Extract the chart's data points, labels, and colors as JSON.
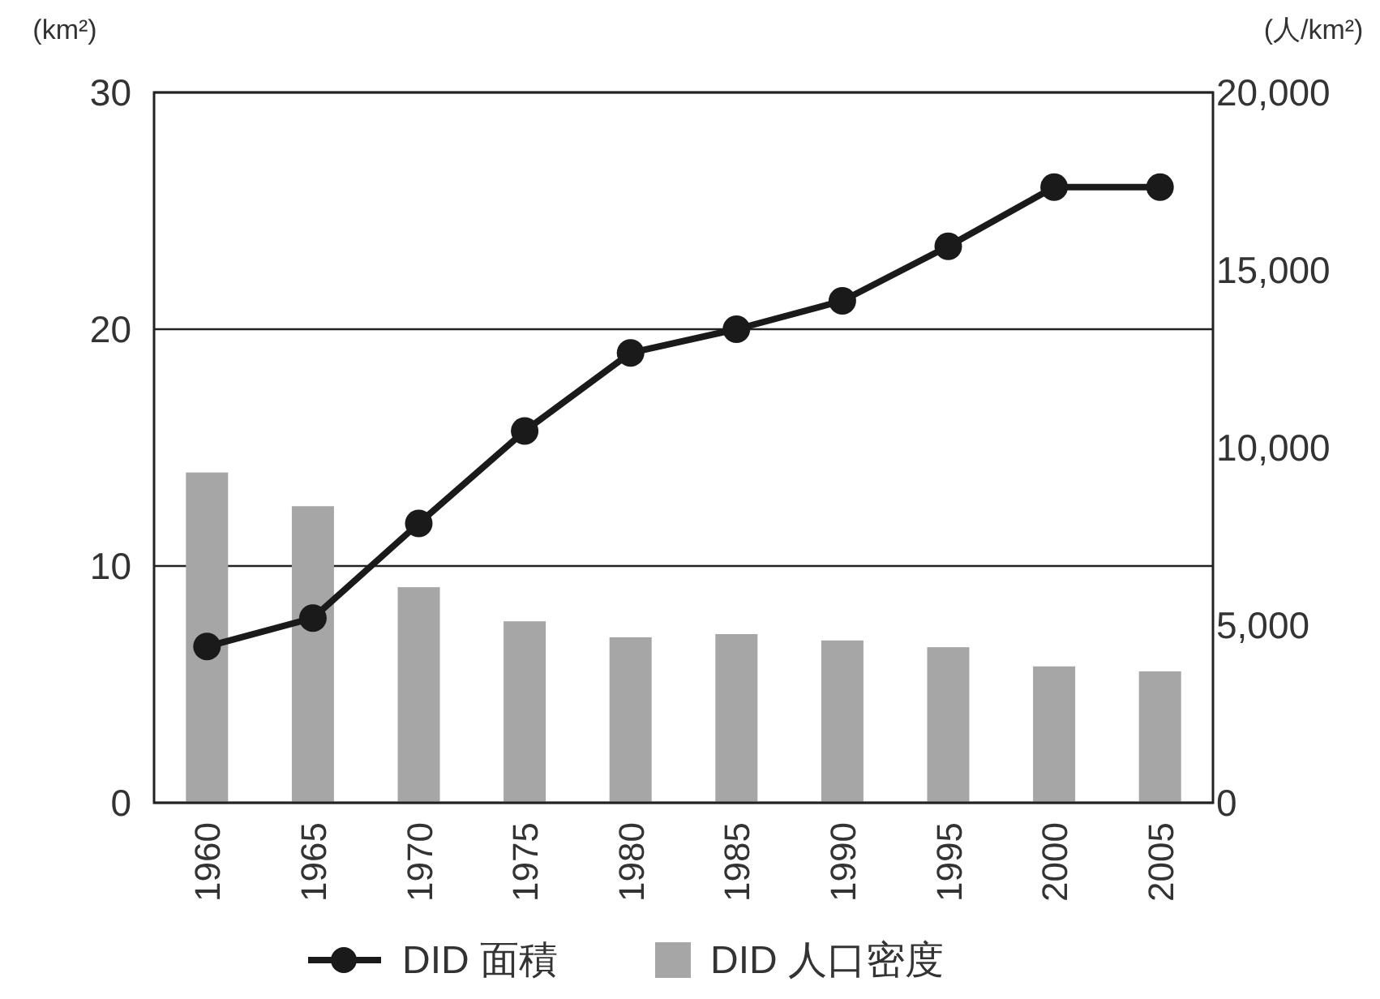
{
  "chart_data": {
    "type": "bar",
    "ylabel": "(km²)",
    "y2label": "(人/km²)",
    "categories": [
      "1960",
      "1965",
      "1970",
      "1975",
      "1980",
      "1985",
      "1990",
      "1995",
      "2000",
      "2005"
    ],
    "series": [
      {
        "name": "DID 面積",
        "type": "line",
        "color": "#1a1a1a",
        "marker": "circle",
        "values": [
          6.6,
          7.8,
          11.8,
          15.7,
          19.0,
          20.0,
          21.2,
          23.5,
          26.0,
          26.0
        ]
      },
      {
        "name": "DID 人口密度",
        "axis": "y2",
        "color": "#a6a6a6",
        "values": [
          9300,
          8350,
          6070,
          5110,
          4660,
          4750,
          4570,
          4380,
          3840,
          3700
        ]
      }
    ],
    "ylim": [
      0,
      30
    ],
    "yticks": [
      0,
      10,
      20,
      30
    ],
    "y2lim": [
      0,
      20000
    ],
    "y2ticks": [
      0,
      {
        "value": 5000,
        "label": "5,000"
      },
      {
        "value": 10000,
        "label": "10,000"
      },
      {
        "value": 15000,
        "label": "15,000"
      },
      {
        "value": 20000,
        "label": "20,000"
      }
    ],
    "grid": "y",
    "legend": "bottom"
  }
}
